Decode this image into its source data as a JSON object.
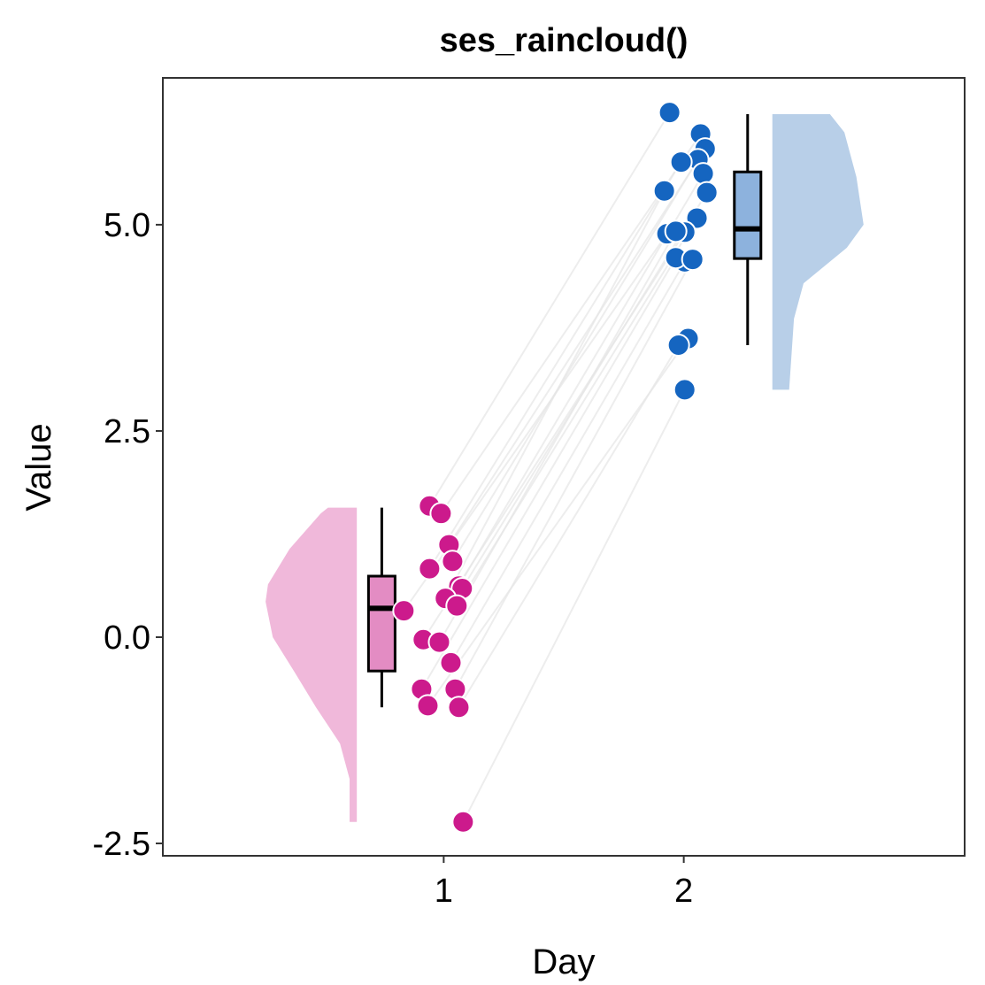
{
  "chart_data": {
    "type": "raincloud",
    "title": "ses_raincloud()",
    "xlabel": "Day",
    "ylabel": "Value",
    "xlim": [
      -0.17,
      3.17
    ],
    "xticks": [
      1,
      2
    ],
    "ylim": [
      -2.65,
      6.78
    ],
    "yticks": [
      {
        "value": -2.5,
        "label": "-2.5"
      },
      {
        "value": 0,
        "label": "0.0"
      },
      2.5,
      {
        "value": 5,
        "label": "5.0"
      }
    ],
    "line_color": "#e6e6e6",
    "series": [
      {
        "color": "#cc1a8c",
        "box_color": "#e38cc3",
        "violin_color": "#f0b8da",
        "violin_side": "left",
        "x": [
          0.941,
          0.989,
          1.022,
          1.037,
          0.941,
          1.063,
          1.077,
          1.007,
          1.055,
          0.834,
          0.915,
          0.982,
          1.03,
          0.908,
          1.048,
          0.934,
          1.063,
          1.081
        ],
        "values": [
          1.59,
          1.5,
          1.12,
          0.92,
          0.83,
          0.62,
          0.59,
          0.47,
          0.38,
          0.32,
          -0.03,
          -0.06,
          -0.31,
          -0.63,
          -0.63,
          -0.83,
          -0.85,
          -2.24
        ],
        "box": {
          "x": 0.742,
          "min": -0.85,
          "q1": -0.41,
          "median": 0.35,
          "q3": 0.74,
          "max": 1.57
        },
        "density": {
          "x": 0.638,
          "y": [
            1.57,
            1.5,
            1.07,
            0.64,
            0.43,
            0,
            -0.42,
            -0.85,
            -1.29,
            -1.72,
            -2.24
          ],
          "width": [
            0.12,
            0.15,
            0.28,
            0.37,
            0.38,
            0.35,
            0.26,
            0.17,
            0.07,
            0.03,
            0.03
          ]
        }
      },
      {
        "color": "#1565c0",
        "box_color": "#8db2dd",
        "violin_color": "#b8cfe8",
        "violin_side": "right",
        "x": [
          1.941,
          2.07,
          2.089,
          2.059,
          1.989,
          2.081,
          2.096,
          1.919,
          2.055,
          1.93,
          2.004,
          1.967,
          2.004,
          1.967,
          2.037,
          2.018,
          1.978,
          2.004
        ],
        "values": [
          6.36,
          6.1,
          5.92,
          5.79,
          5.76,
          5.62,
          5.39,
          5.41,
          5.08,
          4.89,
          4.91,
          4.92,
          4.55,
          4.6,
          4.58,
          3.62,
          3.54,
          3.0
        ],
        "box": {
          "x": 2.266,
          "min": 3.54,
          "q1": 4.59,
          "median": 4.95,
          "q3": 5.64,
          "max": 6.34
        },
        "density": {
          "x": 2.369,
          "y": [
            6.34,
            6.12,
            5.58,
            5.0,
            4.72,
            4.29,
            3.86,
            3.43,
            3.0
          ],
          "width": [
            0.24,
            0.3,
            0.35,
            0.38,
            0.31,
            0.13,
            0.09,
            0.08,
            0.07
          ]
        }
      }
    ]
  }
}
